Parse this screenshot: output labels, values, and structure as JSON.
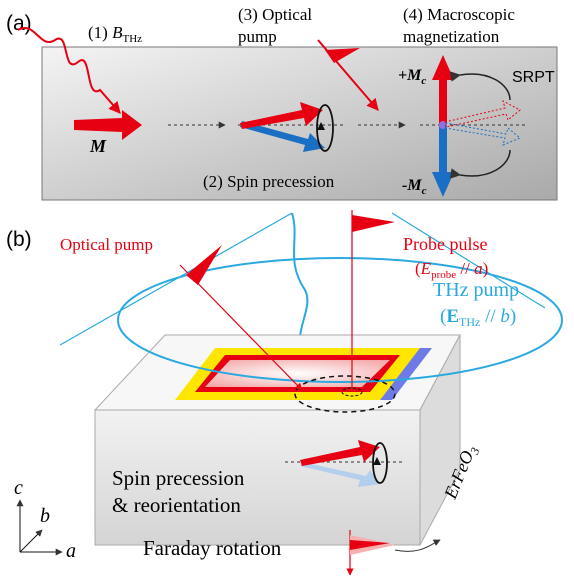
{
  "panel_a": {
    "label": "(a)",
    "step1": {
      "number": "(1) ",
      "symbol": "B",
      "subscript": "THz"
    },
    "step2": "(2) Spin precession",
    "step3": [
      "(3) Optical",
      "pump"
    ],
    "step4": [
      "(4) Macroscopic",
      "magnetization"
    ],
    "magnetization": "M",
    "plus_mc": {
      "sign": "+",
      "symbol": "M",
      "subscript": "c"
    },
    "minus_mc": {
      "sign": "-",
      "symbol": "M",
      "subscript": "c"
    },
    "srpt": "SRPT"
  },
  "panel_b": {
    "label": "(b)",
    "optical_pump": "Optical pump",
    "probe_pulse": "Probe pulse",
    "probe_polarization": {
      "open": "(",
      "symbol": "E",
      "subscript": "probe",
      "relation": " // ",
      "axis": "a",
      "close": ")"
    },
    "thz_pump": "THz pump",
    "thz_polarization": {
      "open": "(",
      "symbol": "E",
      "subscript": "THz",
      "relation": " // ",
      "axis": "b",
      "close": ")"
    },
    "crystal": {
      "name": "ErFeO",
      "subscript": "3"
    },
    "spin_text": [
      "Spin precession",
      "& reorientation"
    ],
    "faraday": "Faraday rotation",
    "axes": {
      "c": "c",
      "b": "b",
      "a": "a"
    }
  }
}
